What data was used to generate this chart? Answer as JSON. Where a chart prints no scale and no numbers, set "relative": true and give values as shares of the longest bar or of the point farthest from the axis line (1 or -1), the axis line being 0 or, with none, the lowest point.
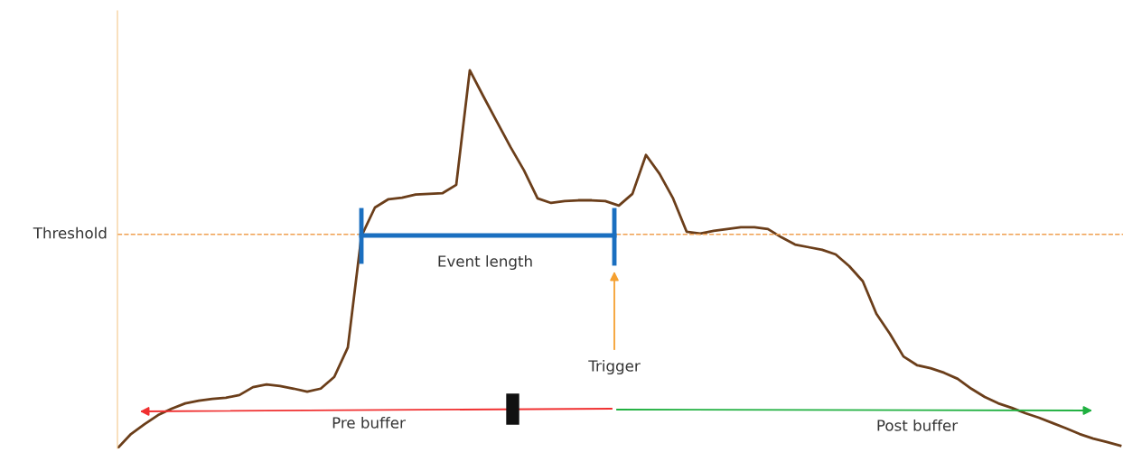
{
  "chart_data": {
    "type": "line",
    "relative": true,
    "color": "#6b3e1a",
    "categories": [
      null,
      null,
      null,
      null,
      null,
      null,
      null,
      null,
      null,
      null,
      null,
      null,
      null,
      null,
      null,
      null,
      null,
      null,
      null,
      null,
      null,
      null,
      null,
      null,
      null,
      null,
      null,
      null,
      null,
      null,
      null,
      null,
      null,
      null,
      null,
      null,
      null,
      null,
      null,
      null,
      null,
      null,
      null,
      null,
      null,
      null,
      null,
      null,
      null,
      null,
      null,
      null,
      null,
      null,
      null,
      null,
      null,
      null,
      null,
      null,
      null,
      null,
      null,
      null,
      null,
      null,
      null,
      null,
      null,
      null,
      null,
      null,
      null,
      null,
      null
    ],
    "values": [
      0,
      0.038,
      0.064,
      0.088,
      0.105,
      0.119,
      0.126,
      0.131,
      0.134,
      0.141,
      0.162,
      0.169,
      0.165,
      0.158,
      0.15,
      0.158,
      0.189,
      0.267,
      0.561,
      0.637,
      0.659,
      0.663,
      0.671,
      0.673,
      0.675,
      0.697,
      1,
      0.931,
      0.864,
      0.797,
      0.735,
      0.661,
      0.649,
      0.654,
      0.656,
      0.656,
      0.654,
      0.642,
      0.673,
      0.776,
      0.726,
      0.661,
      0.573,
      0.568,
      0.575,
      0.58,
      0.585,
      0.585,
      0.58,
      0.558,
      0.539,
      0.532,
      0.525,
      0.513,
      0.482,
      0.442,
      0.356,
      0.303,
      0.243,
      0.22,
      0.212,
      0.2,
      0.184,
      0.158,
      0.136,
      0.119,
      0.107,
      0.093,
      0.081,
      0.067,
      0.053,
      0.038,
      0.026,
      0.017,
      0.007
    ],
    "ref_lines": [
      {
        "axis": "y",
        "value": 0.566,
        "label": "Threshold",
        "color": "#f0a050",
        "line_style": "dashed"
      }
    ],
    "annotations": [
      "Event length",
      "Trigger",
      "Pre buffer",
      "Post buffer"
    ]
  }
}
